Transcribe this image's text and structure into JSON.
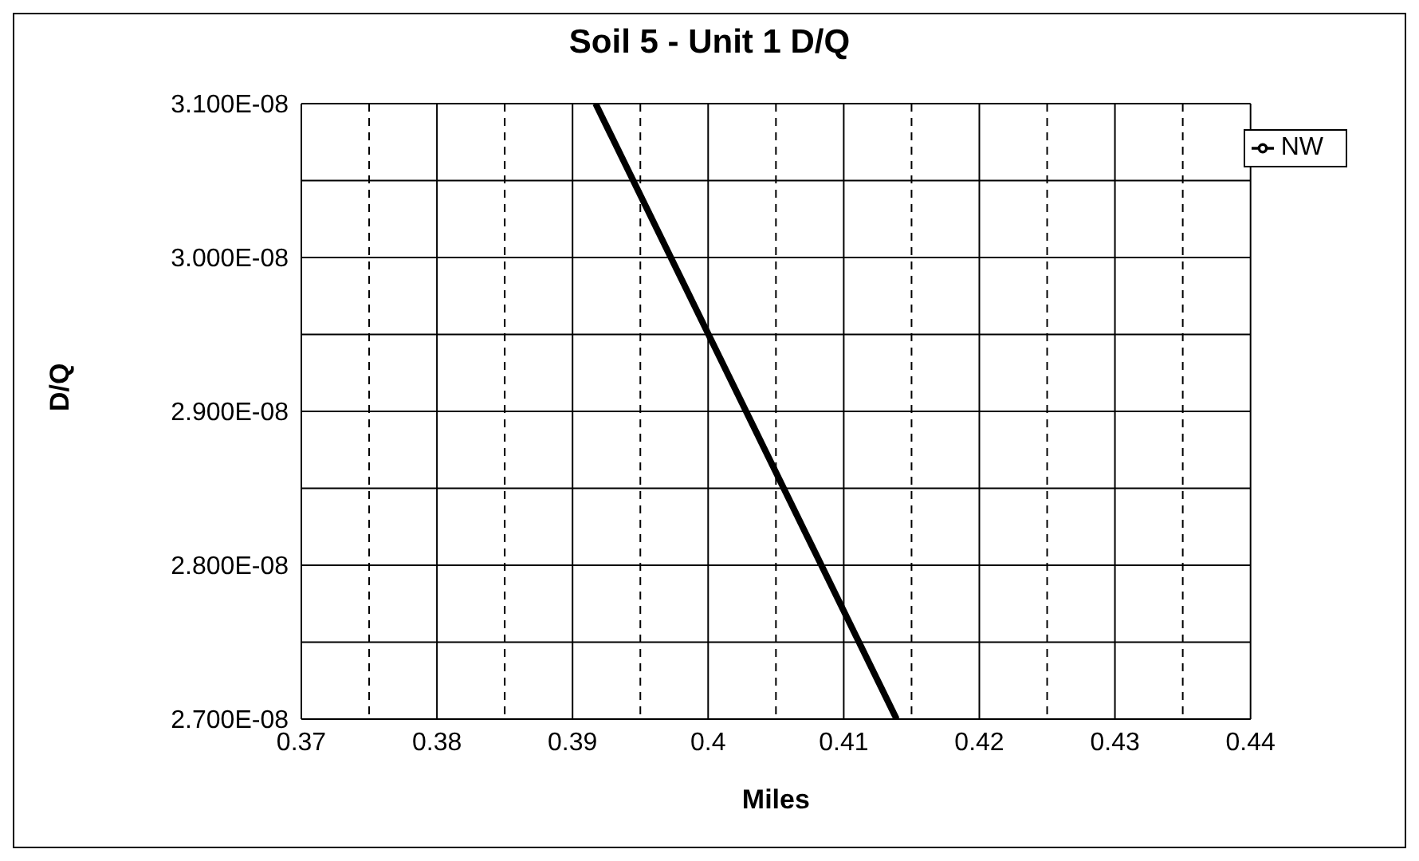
{
  "chart_data": {
    "type": "line",
    "title": "Soil 5 - Unit 1 D/Q",
    "xlabel": "Miles",
    "ylabel": "D/Q",
    "x": [
      0.3917,
      0.4139
    ],
    "series": [
      {
        "name": "NW",
        "color": "#000000",
        "values": [
          3.1e-08,
          2.7e-08
        ]
      }
    ],
    "xlim": [
      0.37,
      0.44
    ],
    "xticks": [
      0.37,
      {
        "value": 0.375,
        "label": null
      },
      0.38,
      {
        "value": 0.385,
        "label": null
      },
      0.39,
      {
        "value": 0.395,
        "label": null
      },
      0.4,
      {
        "value": 0.405,
        "label": null
      },
      0.41,
      {
        "value": 0.415,
        "label": null
      },
      0.42,
      {
        "value": 0.425,
        "label": null
      },
      0.43,
      {
        "value": 0.435,
        "label": null
      },
      0.44
    ],
    "ylim": [
      2.7e-08,
      3.1e-08
    ],
    "yticks": [
      {
        "value": 2.7e-08,
        "label": "2.700E-08"
      },
      {
        "value": 2.75e-08,
        "label": null
      },
      {
        "value": 2.8e-08,
        "label": "2.800E-08"
      },
      {
        "value": 2.85e-08,
        "label": null
      },
      {
        "value": 2.9e-08,
        "label": "2.900E-08"
      },
      {
        "value": 2.95e-08,
        "label": null
      },
      {
        "value": 3e-08,
        "label": "3.000E-08"
      },
      {
        "value": 3.05e-08,
        "label": null
      },
      {
        "value": 3.1e-08,
        "label": "3.100E-08"
      }
    ],
    "grid": true,
    "legend": "top right",
    "marker": "none",
    "line_style": "solid"
  }
}
